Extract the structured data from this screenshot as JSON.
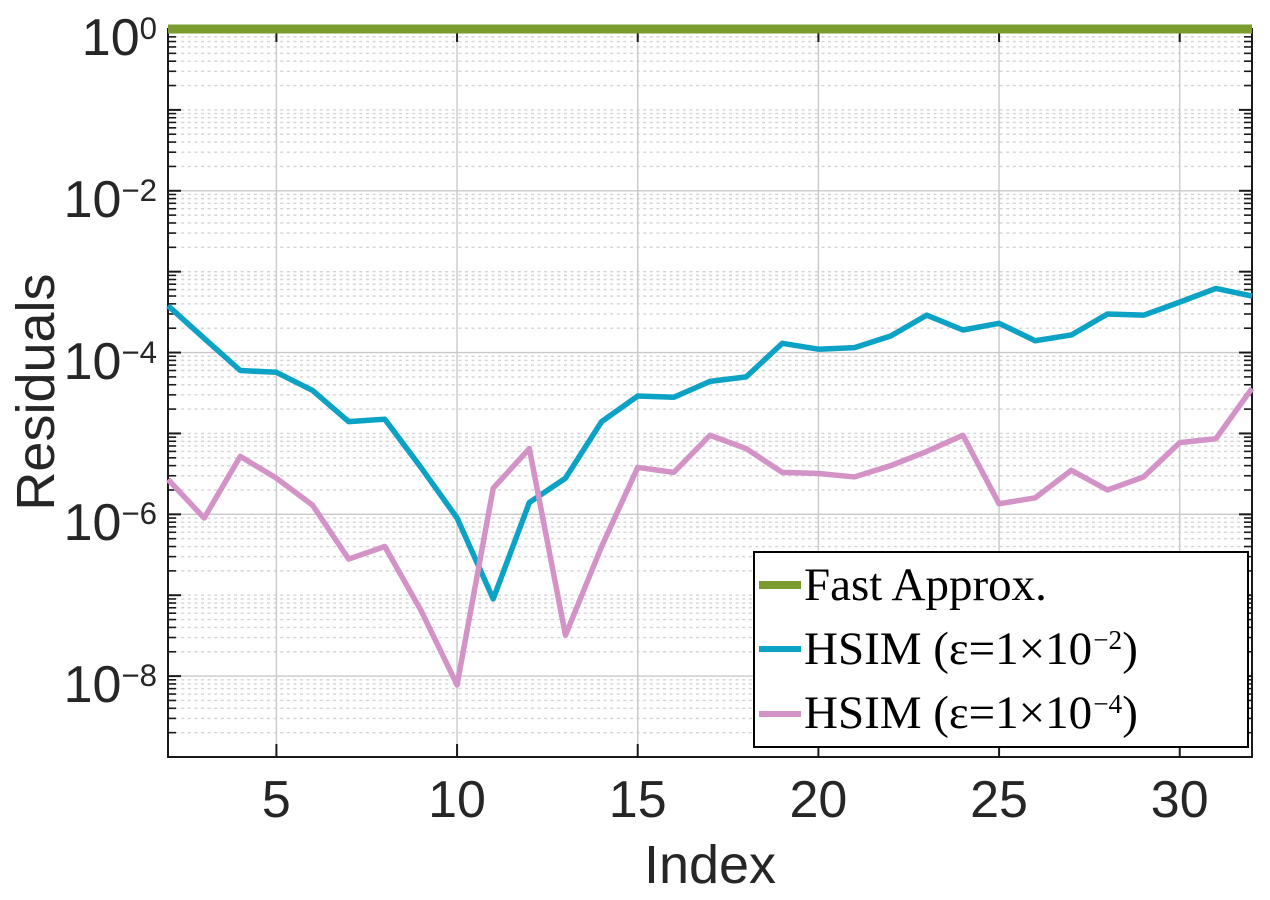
{
  "axes": {
    "xlabel": "Index",
    "ylabel": "Residuals"
  },
  "legend": {
    "position": "bottom-right",
    "items": [
      {
        "label": "Fast Approx.",
        "prefix": "Fast Approx.",
        "exp": "",
        "suffix": ""
      },
      {
        "label": "HSIM (ε=1×10⁻²)",
        "prefix": "HSIM (ε=1×10",
        "exp": "−2",
        "suffix": ")"
      },
      {
        "label": "HSIM (ε=1×10⁻⁴)",
        "prefix": "HSIM (ε=1×10",
        "exp": "−4",
        "suffix": ")"
      }
    ]
  },
  "colors": {
    "fast_approx_green": "#7A9C2F",
    "hsim_1e2_teal": "#0CA2C6",
    "hsim_1e4_pink": "#D393C6",
    "tick_text": "#262626",
    "axis_line": "#1a1a1a",
    "grid_major": "#c9c9c9",
    "grid_minor": "#d4d4d4"
  },
  "chart_data": {
    "type": "line",
    "title": "",
    "xlabel": "Index",
    "ylabel": "Residuals",
    "yscale": "log",
    "xlim": [
      2,
      32
    ],
    "ylim": [
      1e-09,
      1
    ],
    "xticks": [
      5,
      10,
      15,
      20,
      25,
      30
    ],
    "ytick_labels": [
      {
        "base": "10",
        "exp": "0"
      },
      {
        "base": "10",
        "exp": "−2"
      },
      {
        "base": "10",
        "exp": "−4"
      },
      {
        "base": "10",
        "exp": "−6"
      },
      {
        "base": "10",
        "exp": "−8"
      }
    ],
    "grid": {
      "major": true,
      "minor": true,
      "minor_style": "dotted"
    },
    "legend_position": "bottom-right",
    "x": [
      2,
      3,
      4,
      5,
      6,
      7,
      8,
      9,
      10,
      11,
      12,
      13,
      14,
      15,
      16,
      17,
      18,
      19,
      20,
      21,
      22,
      23,
      24,
      25,
      26,
      27,
      28,
      29,
      30,
      31,
      32
    ],
    "series": [
      {
        "name": "Fast Approx.",
        "color": "#7A9C2F",
        "line_width": 9,
        "values": [
          1,
          1,
          1,
          1,
          1,
          1,
          1,
          1,
          1,
          1,
          1,
          1,
          1,
          1,
          1,
          1,
          1,
          1,
          1,
          1,
          1,
          1,
          1,
          1,
          1,
          1,
          1,
          1,
          1,
          1,
          1
        ]
      },
      {
        "name": "HSIM (ε=1×10⁻²)",
        "color": "#0CA2C6",
        "line_width": 5.5,
        "values": [
          0.00038,
          0.00015,
          6e-05,
          5.7e-05,
          3.4e-05,
          1.4e-05,
          1.5e-05,
          3.8e-06,
          9e-07,
          9e-08,
          1.4e-06,
          2.8e-06,
          1.4e-05,
          2.9e-05,
          2.8e-05,
          4.4e-05,
          5e-05,
          0.00013,
          0.00011,
          0.000115,
          0.00016,
          0.00029,
          0.00019,
          0.00023,
          0.00014,
          0.000165,
          0.0003,
          0.00029,
          0.00042,
          0.00062,
          0.0005
        ]
      },
      {
        "name": "HSIM (ε=1×10⁻⁴)",
        "color": "#D393C6",
        "line_width": 5.5,
        "values": [
          2.7e-06,
          9e-07,
          5.2e-06,
          2.8e-06,
          1.3e-06,
          2.8e-07,
          4e-07,
          6.5e-08,
          7.8e-09,
          2.1e-06,
          6.5e-06,
          3.2e-08,
          4e-07,
          3.8e-06,
          3.3e-06,
          9.5e-06,
          6.5e-06,
          3.3e-06,
          3.2e-06,
          2.9e-06,
          4e-06,
          6e-06,
          9.5e-06,
          1.35e-06,
          1.6e-06,
          3.5e-06,
          2e-06,
          2.9e-06,
          7.7e-06,
          8.6e-06,
          3.6e-05
        ]
      }
    ]
  }
}
